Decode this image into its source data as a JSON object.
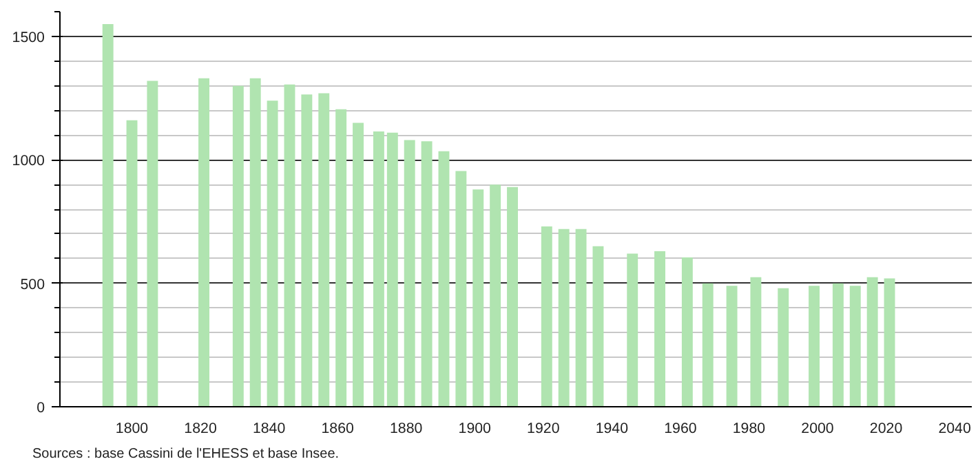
{
  "chart_data": {
    "type": "bar",
    "x": [
      1793,
      1800,
      1806,
      1821,
      1831,
      1836,
      1841,
      1846,
      1851,
      1856,
      1861,
      1866,
      1872,
      1876,
      1881,
      1886,
      1891,
      1896,
      1901,
      1906,
      1911,
      1921,
      1926,
      1931,
      1936,
      1946,
      1954,
      1962,
      1968,
      1975,
      1982,
      1990,
      1999,
      2006,
      2011,
      2016,
      2021
    ],
    "values": [
      1550,
      1160,
      1320,
      1330,
      1300,
      1330,
      1240,
      1305,
      1265,
      1270,
      1205,
      1150,
      1115,
      1110,
      1080,
      1075,
      1035,
      955,
      880,
      900,
      890,
      730,
      720,
      720,
      650,
      620,
      630,
      605,
      500,
      490,
      525,
      480,
      490,
      500,
      490,
      525,
      520
    ],
    "color": "#b0e4b0",
    "xlim": [
      1779,
      2045
    ],
    "xticks": [
      1800,
      1820,
      1840,
      1860,
      1880,
      1900,
      1920,
      1940,
      1960,
      1980,
      2000,
      2020,
      2040
    ],
    "ylim": [
      0,
      1600
    ],
    "yticks": [
      0,
      {
        "value": 100,
        "label": null
      },
      {
        "value": 200,
        "label": null
      },
      {
        "value": 300,
        "label": null
      },
      {
        "value": 400,
        "label": null
      },
      500,
      {
        "value": 600,
        "label": null
      },
      {
        "value": 700,
        "label": null
      },
      {
        "value": 800,
        "label": null
      },
      {
        "value": 900,
        "label": null
      },
      1000,
      {
        "value": 1100,
        "label": null
      },
      {
        "value": 1200,
        "label": null
      },
      {
        "value": 1300,
        "label": null
      },
      {
        "value": 1400,
        "label": null
      },
      1500,
      {
        "value": 1600,
        "label": null
      }
    ],
    "grid": "y",
    "annotations": [
      "Sources : base Cassini de l'EHESS et base Insee."
    ]
  }
}
